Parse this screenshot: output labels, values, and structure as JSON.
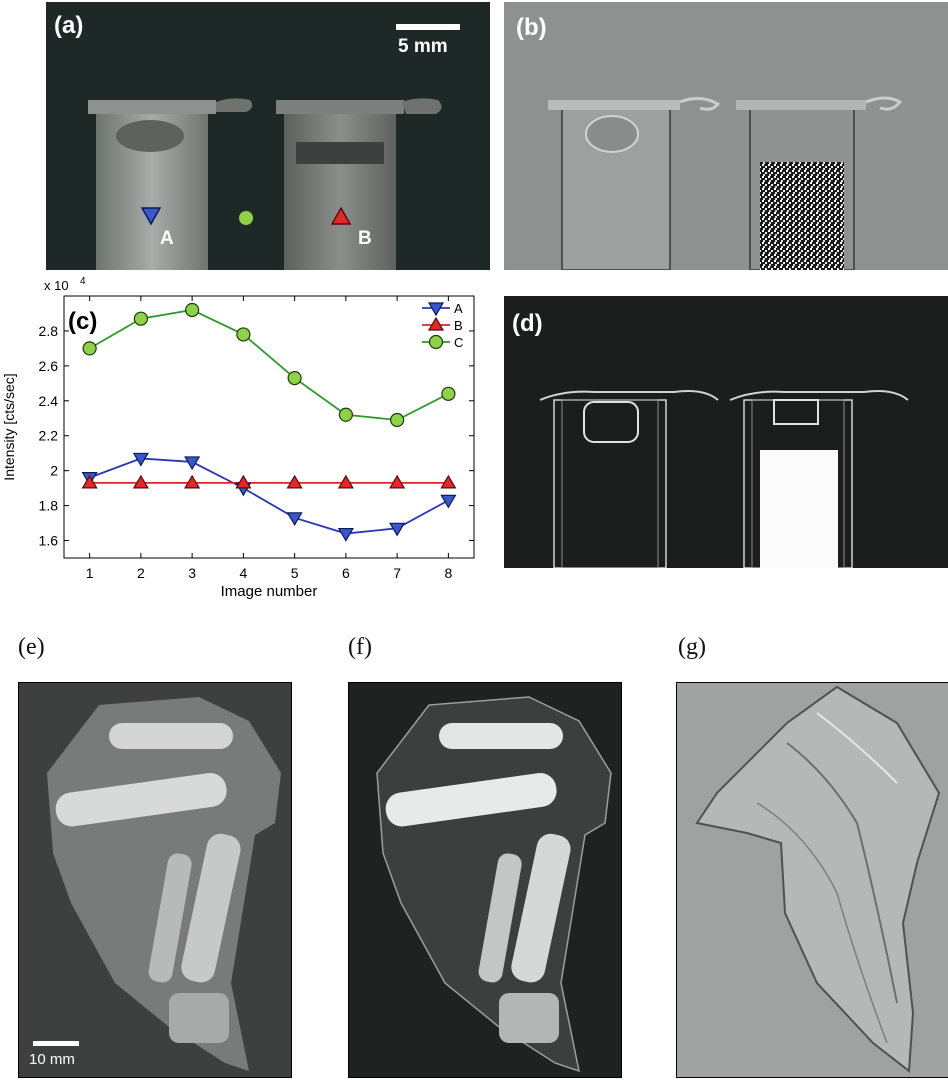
{
  "figure": {
    "panels": {
      "a": {
        "label": "(a)",
        "scalebar": "5 mm",
        "marker_A": "A",
        "marker_B": "B"
      },
      "b": {
        "label": "(b)"
      },
      "c": {
        "label": "(c)"
      },
      "d": {
        "label": "(d)"
      },
      "e": {
        "label": "(e)",
        "scalebar": "10 mm"
      },
      "f": {
        "label": "(f)"
      },
      "g": {
        "label": "(g)"
      }
    }
  },
  "colors": {
    "series_A": "#2a36b8",
    "series_B": "#d8262a",
    "series_C": "#2f9a2a",
    "marker_A_fill": "#3b58c8",
    "marker_B_fill": "#e02a2a",
    "marker_C_fill": "#8fd24a"
  },
  "chart_data": {
    "type": "line",
    "title": "",
    "xlabel": "Image number",
    "ylabel": "Intensity [cts/sec]",
    "y_multiplier": "x 10",
    "y_multiplier_exp": "4",
    "xlim": [
      0.5,
      8.5
    ],
    "ylim": [
      1.5,
      3.0
    ],
    "x": [
      1,
      2,
      3,
      4,
      5,
      6,
      7,
      8
    ],
    "xticks": [
      "1",
      "2",
      "3",
      "4",
      "5",
      "6",
      "7",
      "8"
    ],
    "yticks": [
      "1.6",
      "1.8",
      "2",
      "2.2",
      "2.4",
      "2.6",
      "2.8"
    ],
    "ytick_values": [
      1.6,
      1.8,
      2.0,
      2.2,
      2.4,
      2.6,
      2.8
    ],
    "legend_position": "top-right",
    "grid": false,
    "series": [
      {
        "name": "A",
        "marker": "triangle-down",
        "values": [
          1.96,
          2.07,
          2.05,
          1.9,
          1.73,
          1.64,
          1.67,
          1.83
        ]
      },
      {
        "name": "B",
        "marker": "triangle-up",
        "values": [
          1.93,
          1.93,
          1.93,
          1.93,
          1.93,
          1.93,
          1.93,
          1.93
        ]
      },
      {
        "name": "C",
        "marker": "circle",
        "values": [
          2.7,
          2.87,
          2.92,
          2.78,
          2.53,
          2.32,
          2.29,
          2.44
        ]
      }
    ]
  }
}
